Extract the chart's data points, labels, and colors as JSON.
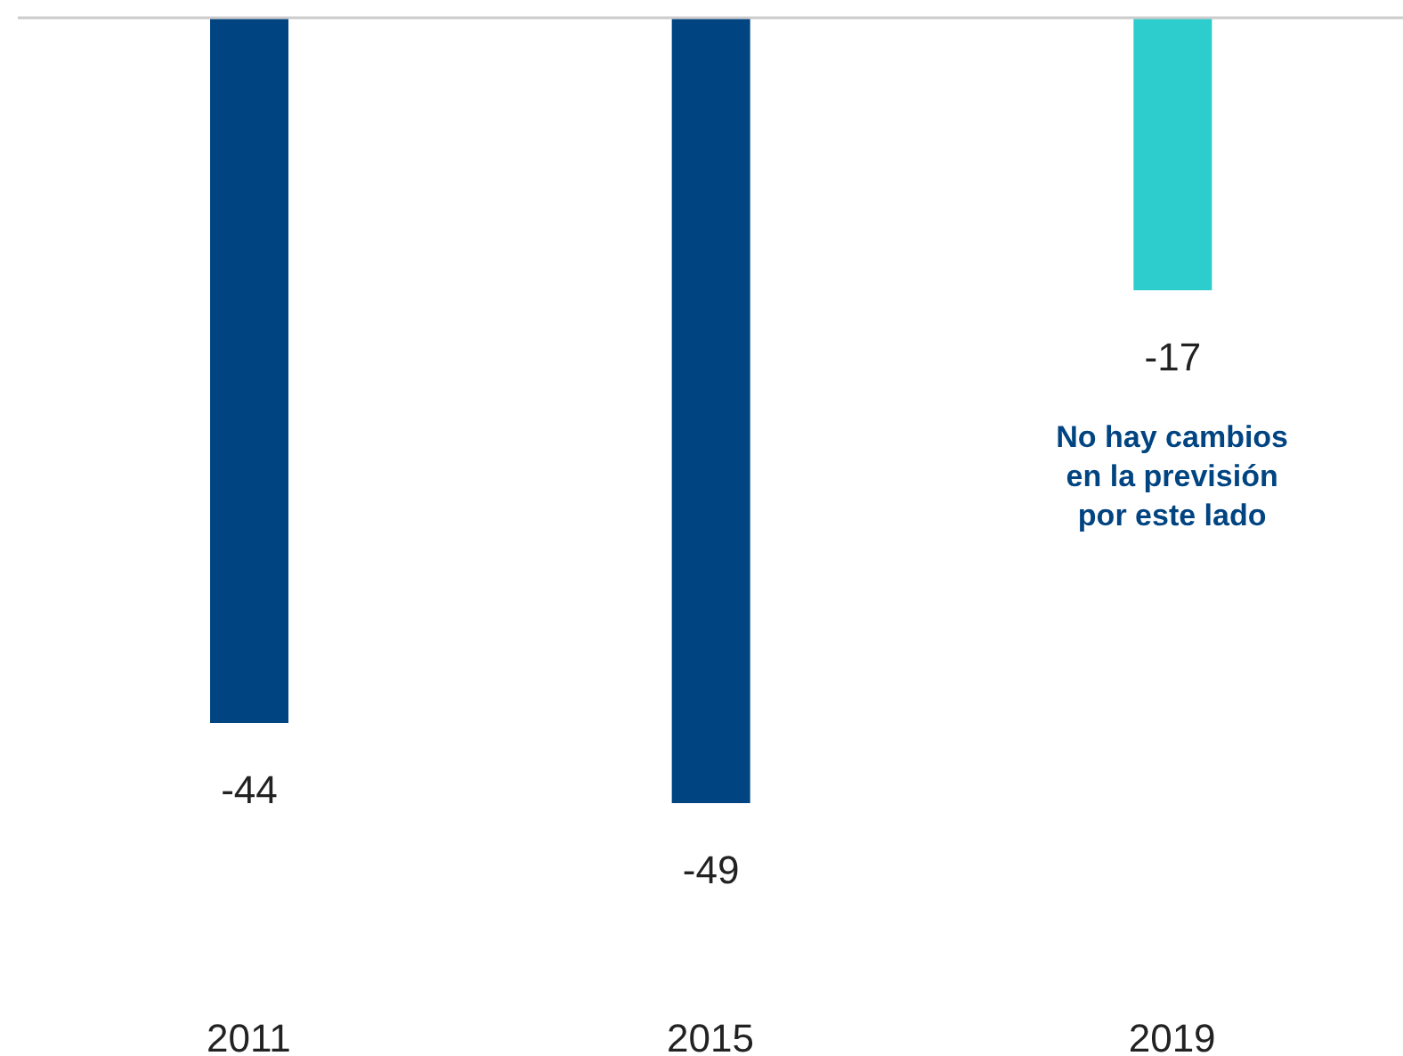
{
  "chart_data": {
    "type": "bar",
    "categories": [
      "2011",
      "2015",
      "2019"
    ],
    "values": [
      -44,
      -49,
      -17
    ],
    "colors": [
      "#004481",
      "#004481",
      "#2dcccd"
    ],
    "data_labels": true,
    "annotations": [
      "No hay cambios en la previsión por este lado"
    ]
  }
}
